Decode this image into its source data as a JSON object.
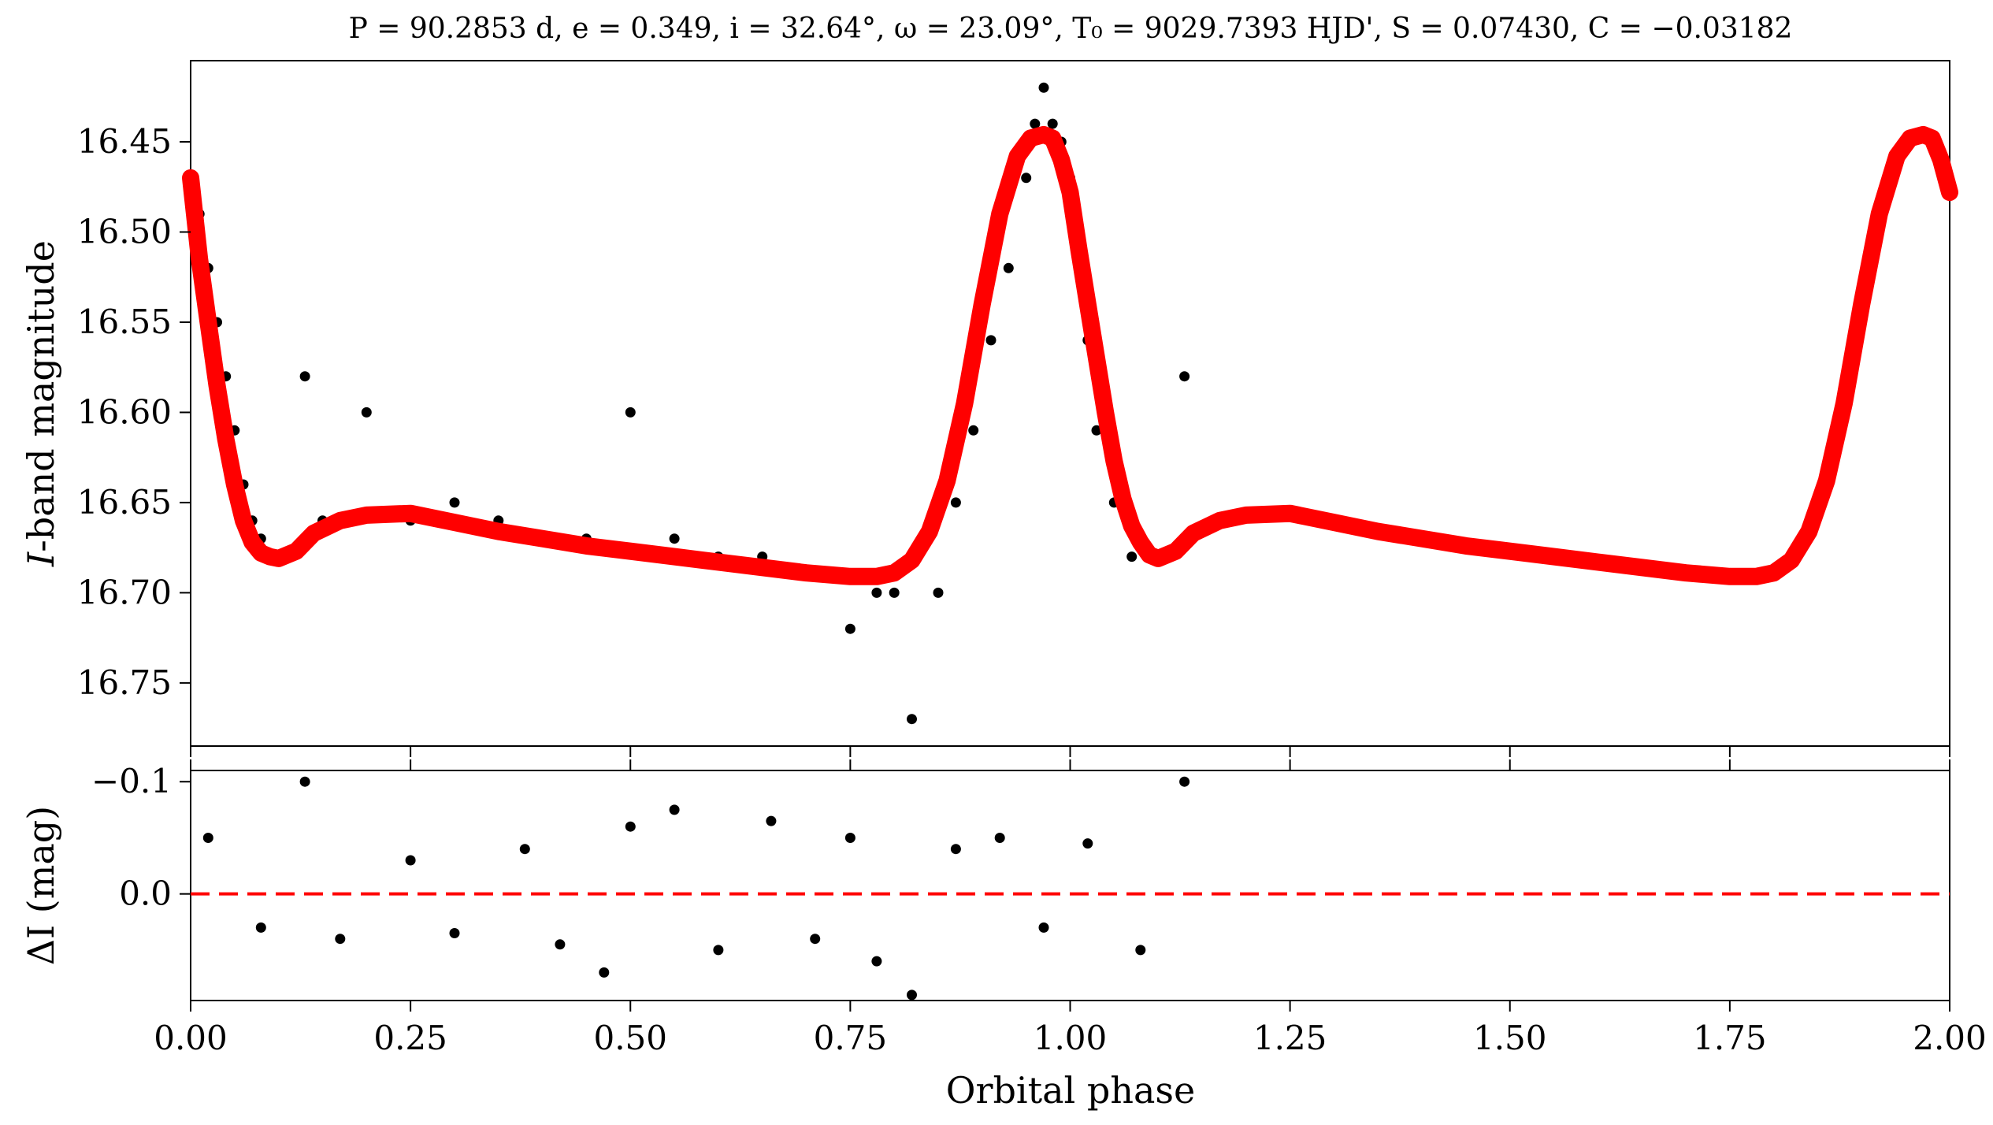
{
  "chart_data": [
    {
      "type": "scatter",
      "panel": "light-curve",
      "title": "P = 90.2853 d, e = 0.349, i = 32.64°, ω = 23.09°, T₀ = 9029.7393 HJD', S = 0.07430, C = −0.03182",
      "xlabel": "",
      "ylabel": "I-band magnitude",
      "xlim": [
        0.0,
        2.0
      ],
      "ylim": [
        16.785,
        16.405
      ],
      "y_inverted": true,
      "y_ticks": [
        16.45,
        16.5,
        16.55,
        16.6,
        16.65,
        16.7,
        16.75
      ],
      "y_tick_labels": [
        "16.45",
        "16.50",
        "16.55",
        "16.60",
        "16.65",
        "16.70",
        "16.75"
      ],
      "grid": false,
      "series": [
        {
          "kind": "points",
          "color": "#000000",
          "x": [
            0.0,
            0.01,
            0.02,
            0.03,
            0.04,
            0.05,
            0.06,
            0.07,
            0.08,
            0.1,
            0.13,
            0.15,
            0.2,
            0.25,
            0.3,
            0.35,
            0.4,
            0.45,
            0.5,
            0.55,
            0.6,
            0.65,
            0.7,
            0.75,
            0.78,
            0.8,
            0.82,
            0.85,
            0.87,
            0.89,
            0.91,
            0.93,
            0.95,
            0.96,
            0.97,
            0.98,
            0.99,
            1.0,
            1.01,
            1.02,
            1.03,
            1.05,
            1.07,
            1.1,
            1.13
          ],
          "y": [
            16.47,
            16.49,
            16.52,
            16.55,
            16.58,
            16.61,
            16.64,
            16.66,
            16.67,
            16.68,
            16.58,
            16.66,
            16.6,
            16.66,
            16.65,
            16.66,
            16.67,
            16.67,
            16.6,
            16.67,
            16.68,
            16.68,
            16.69,
            16.72,
            16.7,
            16.7,
            16.77,
            16.7,
            16.65,
            16.61,
            16.56,
            16.52,
            16.47,
            16.44,
            16.42,
            16.44,
            16.45,
            16.47,
            16.52,
            16.56,
            16.61,
            16.65,
            16.68,
            16.68,
            16.58
          ]
        },
        {
          "kind": "model",
          "color": "#ff0000",
          "x": [
            0.0,
            0.01,
            0.02,
            0.03,
            0.04,
            0.05,
            0.06,
            0.07,
            0.08,
            0.09,
            0.1,
            0.12,
            0.14,
            0.17,
            0.2,
            0.25,
            0.3,
            0.35,
            0.4,
            0.45,
            0.5,
            0.55,
            0.6,
            0.65,
            0.7,
            0.75,
            0.78,
            0.8,
            0.82,
            0.84,
            0.86,
            0.88,
            0.9,
            0.92,
            0.94,
            0.955,
            0.97,
            0.98,
            0.99,
            1.0,
            1.01,
            1.02,
            1.03,
            1.04,
            1.05,
            1.06,
            1.07,
            1.08,
            1.09,
            1.1
          ],
          "y": [
            16.47,
            16.515,
            16.55,
            16.585,
            16.615,
            16.64,
            16.66,
            16.672,
            16.678,
            16.68,
            16.681,
            16.677,
            16.667,
            16.66,
            16.657,
            16.656,
            16.661,
            16.666,
            16.67,
            16.674,
            16.677,
            16.68,
            16.683,
            16.686,
            16.689,
            16.691,
            16.691,
            16.689,
            16.682,
            16.666,
            16.638,
            16.595,
            16.54,
            16.49,
            16.458,
            16.448,
            16.446,
            16.448,
            16.46,
            16.478,
            16.51,
            16.54,
            16.57,
            16.6,
            16.627,
            16.648,
            16.663,
            16.672,
            16.679,
            16.681
          ]
        }
      ]
    },
    {
      "type": "scatter",
      "panel": "residuals",
      "xlabel": "Orbital phase",
      "ylabel": "ΔI (mag)",
      "xlim": [
        0.0,
        2.0
      ],
      "ylim": [
        0.095,
        -0.11
      ],
      "y_inverted": true,
      "x_ticks": [
        0.0,
        0.25,
        0.5,
        0.75,
        1.0,
        1.25,
        1.5,
        1.75,
        2.0
      ],
      "x_tick_labels": [
        "0.00",
        "0.25",
        "0.50",
        "0.75",
        "1.00",
        "1.25",
        "1.50",
        "1.75",
        "2.00"
      ],
      "y_ticks": [
        -0.1,
        0.0
      ],
      "y_tick_labels": [
        "−0.1",
        "0.0"
      ],
      "grid": false,
      "reference_line": {
        "y": 0.0,
        "style": "dashed",
        "color": "#ff0000"
      },
      "series": [
        {
          "kind": "points",
          "color": "#000000",
          "x": [
            0.02,
            0.08,
            0.13,
            0.17,
            0.25,
            0.3,
            0.38,
            0.42,
            0.47,
            0.5,
            0.55,
            0.6,
            0.66,
            0.71,
            0.75,
            0.78,
            0.82,
            0.87,
            0.92,
            0.97,
            1.02,
            1.08,
            1.13
          ],
          "y": [
            -0.05,
            0.03,
            -0.1,
            0.04,
            -0.03,
            0.035,
            -0.04,
            0.045,
            0.07,
            -0.06,
            -0.075,
            0.05,
            -0.065,
            0.04,
            -0.05,
            0.06,
            0.09,
            -0.04,
            -0.05,
            0.03,
            -0.045,
            0.05,
            -0.1
          ]
        }
      ]
    }
  ]
}
